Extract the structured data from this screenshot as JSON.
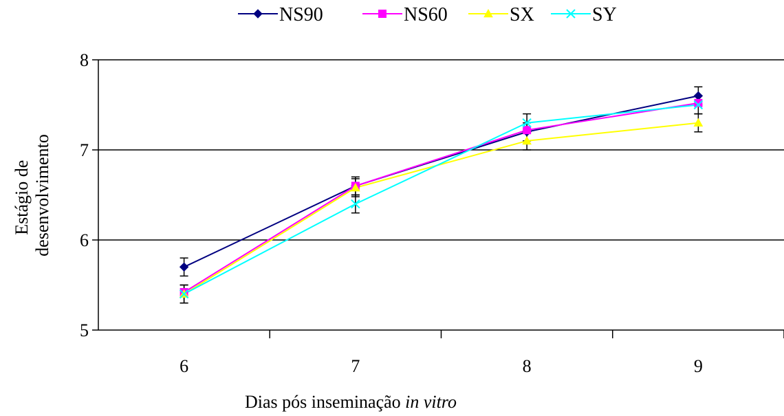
{
  "chart_data": {
    "type": "line",
    "xlabel_main": "Dias pós inseminação ",
    "xlabel_italic": "in vitro",
    "ylabel_lines": [
      "Estágio de",
      "desenvolvimento"
    ],
    "categories": [
      "6",
      "7",
      "8",
      "9"
    ],
    "ylim": [
      5,
      8
    ],
    "yticks": [
      5,
      6,
      7,
      8
    ],
    "grid": true,
    "legend": "top",
    "series": [
      {
        "name": "NS90",
        "color": "#000080",
        "marker": "diamond",
        "values": [
          5.7,
          6.6,
          7.2,
          7.6
        ],
        "error": [
          0.1,
          0.1,
          0.1,
          0.1
        ]
      },
      {
        "name": "NS60",
        "color": "#FF00FF",
        "marker": "square",
        "values": [
          5.42,
          6.6,
          7.22,
          7.52
        ],
        "error": [
          null,
          null,
          null,
          null
        ]
      },
      {
        "name": "SX",
        "color": "#FFFF00",
        "marker": "triangle",
        "values": [
          5.4,
          6.58,
          7.1,
          7.3
        ],
        "error": [
          0.1,
          0.1,
          0.1,
          0.1
        ]
      },
      {
        "name": "SY",
        "color": "#00FFFF",
        "marker": "x",
        "values": [
          5.4,
          6.4,
          7.3,
          7.5
        ],
        "error": [
          0.1,
          0.1,
          0.1,
          0.1
        ]
      }
    ]
  }
}
